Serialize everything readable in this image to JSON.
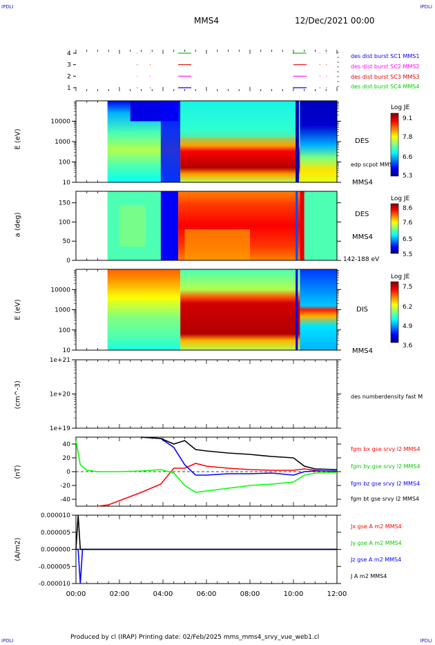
{
  "header": {
    "corner_tl": "IPDLI",
    "corner_tr": "IPDLI",
    "corner_bl": "IPDLI",
    "corner_br": "IPDLI",
    "title": "MMS4",
    "date": "12/Dec/2021 00:00"
  },
  "footer": {
    "text": "Produced by cl (IRAP)   Printing date: 02/Feb/2025   mms_mms4_srvy_vue_web1.cl"
  },
  "chart_data": [
    {
      "type": "scatter",
      "panel": "burst availability",
      "yticks": [
        "1",
        "2",
        "3",
        "4"
      ],
      "legend": [
        {
          "name": "des dist burst SC1 MMS1",
          "color": "#0000ff"
        },
        {
          "name": "des dist burst SC2 MMS2",
          "color": "#ff00ff"
        },
        {
          "name": "des dist burst SC3 MMS3",
          "color": "#e00000"
        },
        {
          "name": "des dist burst SC4 MMS4",
          "color": "#00cc00"
        }
      ]
    },
    {
      "type": "heatmap",
      "ylabel": "E (eV)",
      "yticks": [
        "10",
        "100",
        "1000",
        "10000"
      ],
      "label": "DES",
      "sublabel": "edp scpot MMS4",
      "spacecraft": "MMS4",
      "colorbar": {
        "title": "Log JE",
        "ticks": [
          "9.1",
          "7.8",
          "6.6",
          "5.3"
        ]
      }
    },
    {
      "type": "heatmap",
      "ylabel": "a (deg)",
      "yticks": [
        "0",
        "50",
        "100",
        "150"
      ],
      "label": "DES",
      "sublabel": "MMS4",
      "energy_range": "142-188 eV",
      "colorbar": {
        "title": "Log JE",
        "ticks": [
          "8.6",
          "7.6",
          "6.5",
          "5.5"
        ]
      }
    },
    {
      "type": "heatmap",
      "ylabel": "E (eV)",
      "yticks": [
        "10",
        "100",
        "1000",
        "10000"
      ],
      "label": "DIS",
      "spacecraft": "MMS4",
      "colorbar": {
        "title": "Log JE",
        "ticks": [
          "7.5",
          "6.2",
          "4.9",
          "3.6"
        ]
      }
    },
    {
      "type": "line",
      "ylabel": "(cm^-3)",
      "yticks": [
        "1e+19",
        "1e+20",
        "1e+21"
      ],
      "legend": [
        {
          "name": "des numberdensity fast M",
          "color": "#000000"
        }
      ],
      "series": []
    },
    {
      "type": "line",
      "ylabel": "(nT)",
      "yticks": [
        "-40",
        "-20",
        "0",
        "20",
        "40"
      ],
      "ylim": [
        -50,
        50
      ],
      "x": [
        0,
        0.2,
        0.5,
        1,
        1.5,
        2,
        3,
        3.9,
        4.5,
        5,
        5.5,
        6,
        7,
        8,
        9,
        10,
        10.5,
        11,
        12
      ],
      "series": [
        {
          "name": "fgm bx gse srvy l2 MMS4",
          "color": "#ff0000",
          "values": [
            null,
            null,
            null,
            -50,
            -48,
            -42,
            -30,
            -18,
            5,
            5,
            12,
            8,
            5,
            3,
            2,
            2,
            4,
            2,
            0
          ]
        },
        {
          "name": "fgm by gse srvy l2 MMS4",
          "color": "#00ff00",
          "values": [
            45,
            10,
            2,
            0,
            0,
            0,
            1,
            3,
            -2,
            -20,
            -30,
            -28,
            -24,
            -20,
            -18,
            -15,
            -5,
            -2,
            -1
          ]
        },
        {
          "name": "fgm bz gse srvy l2 MMS4",
          "color": "#0000ff",
          "values": [
            null,
            null,
            null,
            null,
            null,
            null,
            50,
            48,
            35,
            10,
            -5,
            -5,
            -3,
            -3,
            -2,
            -5,
            0,
            1,
            1
          ]
        },
        {
          "name": "fgm bt gse srvy l2 MMS4",
          "color": "#000000",
          "values": [
            null,
            null,
            null,
            null,
            null,
            null,
            50,
            48,
            40,
            45,
            32,
            30,
            27,
            25,
            22,
            20,
            8,
            4,
            3
          ]
        }
      ]
    },
    {
      "type": "line",
      "ylabel": "(A/m2)",
      "yticks": [
        "-0.000010",
        "-0.000005",
        "0.000000",
        "0.000005",
        "0.000010"
      ],
      "ylim": [
        -1e-05,
        1e-05
      ],
      "x": [
        0,
        0.1,
        0.2,
        0.3,
        1,
        4,
        4.8,
        5.1,
        6,
        8,
        10,
        10.3,
        10.5,
        12
      ],
      "series": [
        {
          "name": "Jx gse A m2 MMS4",
          "color": "#ff0000",
          "values": [
            0,
            0,
            0,
            0,
            0,
            0,
            0,
            0,
            0,
            0,
            0,
            0,
            0,
            0
          ]
        },
        {
          "name": "Jy gse A m2 MMS4",
          "color": "#00cc00",
          "values": [
            0,
            0,
            0,
            0,
            0,
            0,
            0,
            0,
            0,
            0,
            0,
            0,
            0,
            0
          ]
        },
        {
          "name": "Jz gse A m2 MMS4",
          "color": "#0000ff",
          "values": [
            0,
            0,
            -1.1e-05,
            0,
            0,
            0,
            0,
            0,
            0,
            0,
            0,
            0,
            0,
            0
          ]
        },
        {
          "name": "J A m2 MMS4",
          "color": "#000000",
          "values": [
            0,
            1e-05,
            0,
            0,
            0,
            0,
            0,
            0,
            0,
            0,
            0,
            0,
            0,
            0
          ]
        }
      ]
    }
  ],
  "xaxis": {
    "ticks": [
      "00:00",
      "02:00",
      "04:00",
      "06:00",
      "08:00",
      "10:00",
      "12:00"
    ],
    "range": [
      "00:00",
      "12:00"
    ]
  }
}
